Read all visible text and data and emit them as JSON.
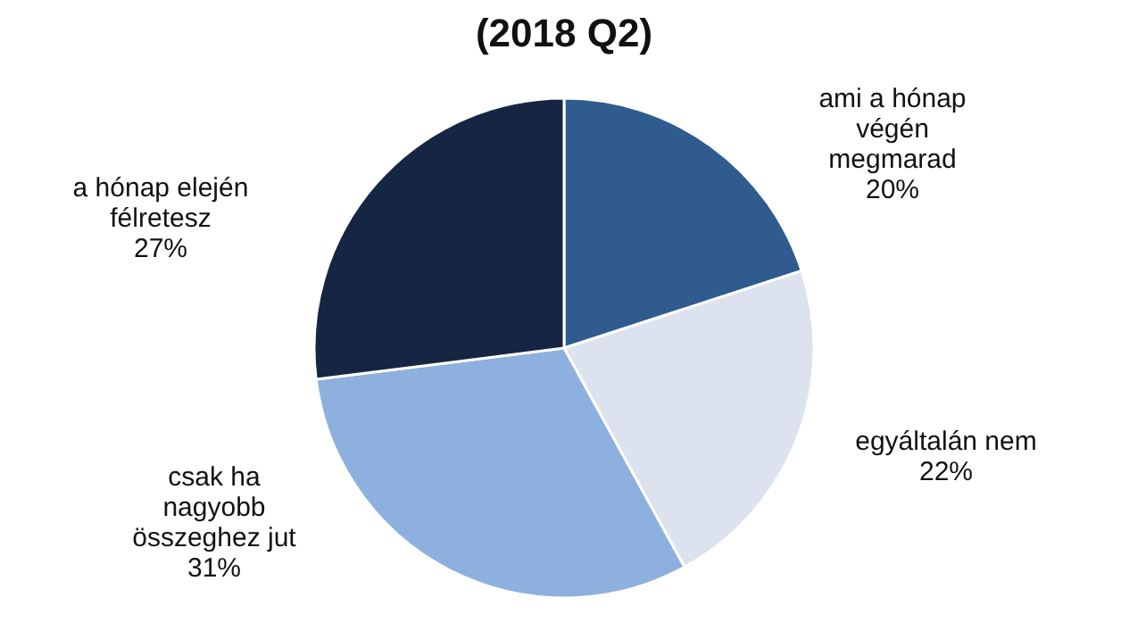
{
  "chart_data": {
    "type": "pie",
    "title": "(2018 Q2)",
    "categories": [
      "ami a hónap végén megmarad",
      "egyáltalán nem",
      "csak ha nagyobb összeghez jut",
      "a hónap elején félretesz"
    ],
    "values": [
      20,
      22,
      31,
      27
    ],
    "colors": [
      "#2f5b8f",
      "#dce3ee",
      "#8eb0de",
      "#162542"
    ],
    "value_labels": [
      "20%",
      "22%",
      "31%",
      "27%"
    ]
  }
}
